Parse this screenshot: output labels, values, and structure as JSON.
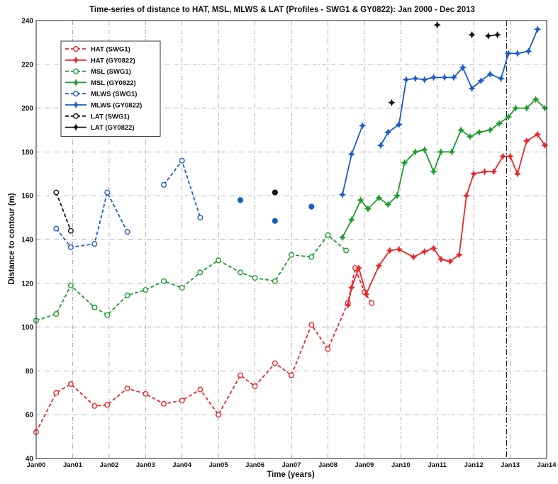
{
  "chart_data": {
    "type": "line",
    "title": "Time-series of distance to HAT, MSL, MLWS & LAT (Profiles - SWG1 & GY0822): Jan 2000 - Dec 2013",
    "xlabel": "Time (years)",
    "ylabel": "Distance to contour (m)",
    "xlim": [
      2000,
      2014
    ],
    "ylim": [
      40,
      240
    ],
    "x_ticks": [
      {
        "value": 2000,
        "label": "Jan00"
      },
      {
        "value": 2001,
        "label": "Jan01"
      },
      {
        "value": 2002,
        "label": "Jan02"
      },
      {
        "value": 2003,
        "label": "Jan03"
      },
      {
        "value": 2004,
        "label": "Jan04"
      },
      {
        "value": 2005,
        "label": "Jan05"
      },
      {
        "value": 2006,
        "label": "Jan06"
      },
      {
        "value": 2007,
        "label": "Jan07"
      },
      {
        "value": 2008,
        "label": "Jan08"
      },
      {
        "value": 2009,
        "label": "Jan09"
      },
      {
        "value": 2010,
        "label": "Jan10"
      },
      {
        "value": 2011,
        "label": "Jan11"
      },
      {
        "value": 2012,
        "label": "Jan12"
      },
      {
        "value": 2013,
        "label": "Jan13"
      },
      {
        "value": 2014,
        "label": "Jan14"
      }
    ],
    "y_ticks": [
      40,
      60,
      80,
      100,
      120,
      140,
      160,
      180,
      200,
      220,
      240
    ],
    "grid": true,
    "legend_position": "top-left",
    "vertical_marker_x": 2012.9,
    "series": [
      {
        "name": "HAT (SWG1)",
        "color": "#e8272a",
        "line": "dashed",
        "marker": "circle-open",
        "points": [
          [
            2000.0,
            52
          ],
          [
            2000.55,
            70
          ],
          [
            2000.95,
            74
          ],
          [
            2001.6,
            64
          ],
          [
            2001.95,
            64.5
          ],
          [
            2002.5,
            72
          ],
          [
            2003.0,
            69.5
          ],
          [
            2003.5,
            65
          ],
          [
            2004.0,
            66.5
          ],
          [
            2004.5,
            71.5
          ],
          [
            2005.0,
            60
          ],
          [
            2005.6,
            78
          ],
          [
            2006.0,
            73
          ],
          [
            2006.55,
            83.5
          ],
          [
            2007.0,
            78
          ],
          [
            2007.55,
            101
          ],
          [
            2008.0,
            90
          ],
          [
            2008.55,
            111
          ],
          [
            2008.75,
            127
          ],
          [
            2009.0,
            116
          ],
          [
            2009.2,
            111
          ]
        ]
      },
      {
        "name": "HAT (GY0822)",
        "color": "#e8272a",
        "line": "solid",
        "marker": "star",
        "points": [
          [
            2008.55,
            110
          ],
          [
            2008.65,
            118
          ],
          [
            2008.85,
            127
          ],
          [
            2009.05,
            115
          ],
          [
            2009.4,
            128
          ],
          [
            2009.7,
            135
          ],
          [
            2009.95,
            135.5
          ],
          [
            2010.35,
            132
          ],
          [
            2010.65,
            134.5
          ],
          [
            2010.9,
            136
          ],
          [
            2011.1,
            131
          ],
          [
            2011.35,
            130
          ],
          [
            2011.6,
            133
          ],
          [
            2011.8,
            160
          ],
          [
            2012.0,
            170
          ],
          [
            2012.3,
            171
          ],
          [
            2012.55,
            171
          ],
          [
            2012.8,
            178
          ],
          [
            2013.0,
            178
          ],
          [
            2013.2,
            170
          ],
          [
            2013.45,
            185
          ],
          [
            2013.75,
            188
          ],
          [
            2013.95,
            183
          ]
        ]
      },
      {
        "name": "MSL (SWG1)",
        "color": "#1e9a2e",
        "line": "dashed",
        "marker": "circle-open",
        "points": [
          [
            2000.0,
            103
          ],
          [
            2000.55,
            106
          ],
          [
            2000.95,
            119
          ],
          [
            2001.6,
            109
          ],
          [
            2001.95,
            105.5
          ],
          [
            2002.5,
            114.5
          ],
          [
            2003.0,
            117
          ],
          [
            2003.5,
            121
          ],
          [
            2004.0,
            118
          ],
          [
            2004.5,
            125
          ],
          [
            2005.0,
            130.5
          ],
          [
            2005.6,
            125
          ],
          [
            2006.0,
            122.5
          ],
          [
            2006.55,
            121
          ],
          [
            2007.0,
            133
          ],
          [
            2007.55,
            132
          ],
          [
            2008.0,
            142
          ],
          [
            2008.5,
            135
          ]
        ]
      },
      {
        "name": "MSL (GY0822)",
        "color": "#1e9a2e",
        "line": "solid",
        "marker": "star",
        "points": [
          [
            2008.4,
            141
          ],
          [
            2008.65,
            149
          ],
          [
            2008.9,
            158
          ],
          [
            2009.1,
            154
          ],
          [
            2009.4,
            159
          ],
          [
            2009.65,
            156
          ],
          [
            2009.9,
            160
          ],
          [
            2010.1,
            175
          ],
          [
            2010.4,
            180
          ],
          [
            2010.65,
            181
          ],
          [
            2010.9,
            171
          ],
          [
            2011.1,
            180
          ],
          [
            2011.4,
            180
          ],
          [
            2011.65,
            190
          ],
          [
            2011.9,
            187
          ],
          [
            2012.15,
            189
          ],
          [
            2012.45,
            190
          ],
          [
            2012.7,
            193
          ],
          [
            2012.95,
            196
          ],
          [
            2013.15,
            200
          ],
          [
            2013.45,
            200
          ],
          [
            2013.7,
            204
          ],
          [
            2013.95,
            200
          ]
        ]
      },
      {
        "name": "MLWS (SWG1)",
        "color": "#1a5cc8",
        "line": "dashed",
        "marker": "circle-open",
        "points": [
          [
            2000.55,
            145
          ],
          [
            2000.95,
            136.5
          ],
          [
            2001.6,
            138
          ],
          [
            2001.95,
            161.5
          ],
          [
            2002.5,
            143.5
          ],
          [
            null,
            null
          ],
          [
            2003.5,
            165
          ],
          [
            2004.0,
            176
          ],
          [
            2004.5,
            150
          ],
          [
            null,
            null
          ],
          [
            2005.6,
            158
          ],
          [
            null,
            null
          ],
          [
            2006.55,
            148.5
          ],
          [
            null,
            null
          ],
          [
            2007.55,
            155
          ]
        ]
      },
      {
        "name": "MLWS (GY0822)",
        "color": "#1a5cc8",
        "line": "solid",
        "marker": "star",
        "points": [
          [
            2008.4,
            160.5
          ],
          [
            2008.65,
            179
          ],
          [
            2008.95,
            192
          ],
          [
            null,
            null
          ],
          [
            2009.45,
            183
          ],
          [
            2009.65,
            189
          ],
          [
            2009.95,
            192.5
          ],
          [
            2010.15,
            213
          ],
          [
            2010.4,
            213.5
          ],
          [
            2010.65,
            213
          ],
          [
            2010.9,
            214
          ],
          [
            2011.2,
            214
          ],
          [
            2011.45,
            214
          ],
          [
            2011.7,
            218.5
          ],
          [
            2011.95,
            209
          ],
          [
            2012.2,
            212.5
          ],
          [
            2012.45,
            215.5
          ],
          [
            2012.75,
            213.5
          ],
          [
            2012.95,
            225
          ],
          [
            2013.2,
            225
          ],
          [
            2013.5,
            226
          ],
          [
            2013.75,
            236
          ]
        ]
      },
      {
        "name": "LAT (SWG1)",
        "color": "#111111",
        "line": "dashed",
        "marker": "circle-open",
        "points": [
          [
            2000.55,
            161.5
          ],
          [
            2000.95,
            144
          ],
          [
            null,
            null
          ],
          [
            2006.55,
            161.5
          ]
        ]
      },
      {
        "name": "LAT (GY0822)",
        "color": "#111111",
        "line": "solid",
        "marker": "star",
        "points": [
          [
            2009.75,
            202.5
          ],
          [
            null,
            null
          ],
          [
            2011.0,
            238
          ],
          [
            null,
            null
          ],
          [
            2011.95,
            233.5
          ],
          [
            null,
            null
          ],
          [
            2012.4,
            233
          ],
          [
            2012.65,
            233.5
          ]
        ]
      }
    ]
  }
}
